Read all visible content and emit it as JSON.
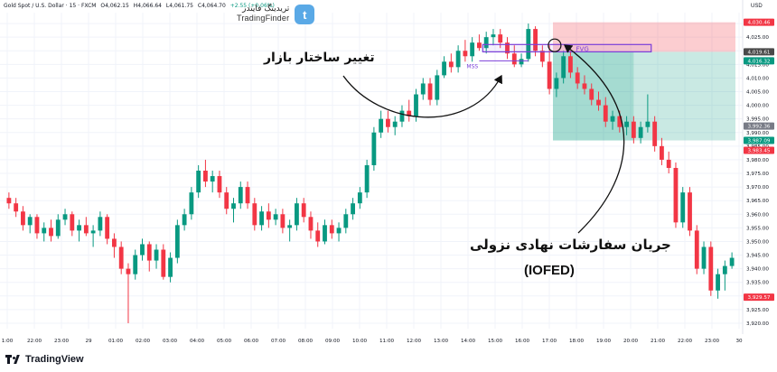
{
  "header": {
    "symbol": "Gold Spot / U.S. Dollar · 15 · FXCM",
    "open": "O4,062.15",
    "high": "H4,066.64",
    "low": "L4,061.75",
    "close": "C4,064.70",
    "change": "+2.55 (+0.06%)"
  },
  "watermark": {
    "fa": "تریدینگ فایندر",
    "en": "TradingFinder",
    "badge": "t"
  },
  "footer": {
    "brand": "TradingView"
  },
  "currency": "USD",
  "annotations": {
    "structure_change": "تغییر ساختار بازار",
    "order_flow_line1": "جریان سفارشات نهادی نزولی",
    "order_flow_line2": "(IOFED)",
    "fvg": "FVG",
    "mss": "MSS"
  },
  "price_badges": [
    {
      "value": 4030.46,
      "label": "4,030.46",
      "color": "#f23645"
    },
    {
      "value": 4019.61,
      "label": "4,019.61",
      "color": "#4a4a4a"
    },
    {
      "value": 4016.32,
      "label": "4,016.32",
      "color": "#089981"
    },
    {
      "value": 3992.36,
      "label": "3,992.36",
      "color": "#787b86"
    },
    {
      "value": 3987.09,
      "label": "3,987.09",
      "color": "#089981"
    },
    {
      "value": 3983.45,
      "label": "3,983.45",
      "color": "#f23645"
    },
    {
      "value": 3929.57,
      "label": "3,929.57",
      "color": "#f23645"
    }
  ],
  "colors": {
    "up": "#089981",
    "down": "#f23645",
    "fvg": "#7b3fd9",
    "stop_zone": "rgba(242,54,69,0.25)",
    "target_zone": "rgba(8,153,129,0.22)"
  },
  "chart_data": {
    "type": "candlestick",
    "title": "Gold Spot / U.S. Dollar · 15 · FXCM",
    "ylim": [
      3918,
      4034
    ],
    "y_ticks": [
      3920,
      3925,
      3930,
      3935,
      3940,
      3945,
      3950,
      3955,
      3960,
      3965,
      3970,
      3975,
      3980,
      3985,
      3990,
      3995,
      4000,
      4005,
      4010,
      4015,
      4020,
      4025,
      4030
    ],
    "x_ticks": [
      "1:00",
      "22:00",
      "23:00",
      "29",
      "01:00",
      "02:00",
      "03:00",
      "04:00",
      "05:00",
      "06:00",
      "07:00",
      "08:00",
      "09:00",
      "10:00",
      "11:00",
      "12:00",
      "13:00",
      "14:00",
      "15:00",
      "16:00",
      "17:00",
      "18:00",
      "19:00",
      "20:00",
      "21:00",
      "22:00",
      "23:00",
      "30"
    ],
    "candles": [
      [
        3966,
        3968,
        3962,
        3964
      ],
      [
        3964,
        3966,
        3959,
        3961
      ],
      [
        3961,
        3963,
        3954,
        3956
      ],
      [
        3956,
        3960,
        3953,
        3959
      ],
      [
        3959,
        3960,
        3951,
        3953
      ],
      [
        3953,
        3957,
        3950,
        3955
      ],
      [
        3955,
        3958,
        3950,
        3952
      ],
      [
        3952,
        3960,
        3951,
        3958
      ],
      [
        3958,
        3962,
        3956,
        3960
      ],
      [
        3960,
        3961,
        3952,
        3954
      ],
      [
        3954,
        3958,
        3950,
        3956
      ],
      [
        3956,
        3959,
        3952,
        3953
      ],
      [
        3953,
        3956,
        3948,
        3954
      ],
      [
        3954,
        3961,
        3952,
        3959
      ],
      [
        3959,
        3960,
        3949,
        3951
      ],
      [
        3951,
        3953,
        3944,
        3948
      ],
      [
        3948,
        3950,
        3938,
        3940
      ],
      [
        3940,
        3942,
        3920,
        3938
      ],
      [
        3938,
        3947,
        3936,
        3945
      ],
      [
        3945,
        3951,
        3943,
        3949
      ],
      [
        3949,
        3950,
        3939,
        3943
      ],
      [
        3943,
        3949,
        3940,
        3947
      ],
      [
        3947,
        3949,
        3936,
        3937
      ],
      [
        3937,
        3946,
        3935,
        3944
      ],
      [
        3944,
        3958,
        3942,
        3956
      ],
      [
        3956,
        3962,
        3954,
        3960
      ],
      [
        3960,
        3970,
        3958,
        3968
      ],
      [
        3968,
        3978,
        3966,
        3976
      ],
      [
        3976,
        3980,
        3970,
        3972
      ],
      [
        3972,
        3976,
        3968,
        3974
      ],
      [
        3974,
        3976,
        3966,
        3968
      ],
      [
        3968,
        3970,
        3960,
        3962
      ],
      [
        3962,
        3966,
        3957,
        3964
      ],
      [
        3964,
        3972,
        3962,
        3970
      ],
      [
        3970,
        3972,
        3962,
        3964
      ],
      [
        3964,
        3966,
        3954,
        3956
      ],
      [
        3956,
        3963,
        3954,
        3961
      ],
      [
        3961,
        3964,
        3955,
        3958
      ],
      [
        3958,
        3962,
        3956,
        3960
      ],
      [
        3960,
        3962,
        3953,
        3955
      ],
      [
        3955,
        3958,
        3950,
        3956
      ],
      [
        3956,
        3966,
        3954,
        3964
      ],
      [
        3964,
        3966,
        3957,
        3959
      ],
      [
        3959,
        3961,
        3951,
        3954
      ],
      [
        3954,
        3957,
        3948,
        3950
      ],
      [
        3950,
        3958,
        3949,
        3956
      ],
      [
        3956,
        3958,
        3951,
        3953
      ],
      [
        3953,
        3957,
        3950,
        3955
      ],
      [
        3955,
        3962,
        3953,
        3960
      ],
      [
        3960,
        3966,
        3958,
        3964
      ],
      [
        3964,
        3970,
        3962,
        3968
      ],
      [
        3968,
        3980,
        3966,
        3978
      ],
      [
        3978,
        3992,
        3976,
        3990
      ],
      [
        3990,
        3998,
        3988,
        3995
      ],
      [
        3995,
        3998,
        3990,
        3992
      ],
      [
        3992,
        3996,
        3989,
        3994
      ],
      [
        3994,
        4000,
        3992,
        3998
      ],
      [
        3998,
        4002,
        3994,
        3996
      ],
      [
        3996,
        4006,
        3994,
        4004
      ],
      [
        4004,
        4010,
        4002,
        4008
      ],
      [
        4008,
        4010,
        4000,
        4002
      ],
      [
        4002,
        4013,
        4000,
        4011
      ],
      [
        4011,
        4018,
        4010,
        4016
      ],
      [
        4016,
        4019,
        4012,
        4014
      ],
      [
        4014,
        4022,
        4012,
        4020
      ],
      [
        4020,
        4024,
        4016,
        4018
      ],
      [
        4018,
        4025,
        4016,
        4023
      ],
      [
        4023,
        4026,
        4020,
        4021
      ],
      [
        4021,
        4027,
        4019,
        4025
      ],
      [
        4025,
        4028,
        4022,
        4026
      ],
      [
        4026,
        4028,
        4021,
        4023
      ],
      [
        4023,
        4025,
        4017,
        4019
      ],
      [
        4019,
        4022,
        4014,
        4015
      ],
      [
        4015,
        4019,
        4014,
        4017
      ],
      [
        4017,
        4030,
        4016,
        4028
      ],
      [
        4028,
        4029,
        4018,
        4020
      ],
      [
        4020,
        4022,
        4014,
        4016
      ],
      [
        4016,
        4022,
        4004,
        4006
      ],
      [
        4006,
        4012,
        4003,
        4010
      ],
      [
        4010,
        4020,
        4008,
        4018
      ],
      [
        4018,
        4020,
        4010,
        4012
      ],
      [
        4012,
        4014,
        4006,
        4008
      ],
      [
        4008,
        4011,
        4004,
        4006
      ],
      [
        4006,
        4008,
        4000,
        4002
      ],
      [
        4002,
        4005,
        3998,
        4000
      ],
      [
        4000,
        4003,
        3992,
        3994
      ],
      [
        3994,
        3998,
        3991,
        3996
      ],
      [
        3996,
        3998,
        3990,
        3992
      ],
      [
        3992,
        3996,
        3989,
        3994
      ],
      [
        3994,
        3996,
        3986,
        3988
      ],
      [
        3988,
        3994,
        3986,
        3992
      ],
      [
        3992,
        4004,
        3990,
        3994
      ],
      [
        3994,
        3996,
        3983,
        3985
      ],
      [
        3985,
        3988,
        3978,
        3980
      ],
      [
        3980,
        3983,
        3975,
        3977
      ],
      [
        3977,
        3979,
        3955,
        3957
      ],
      [
        3957,
        3970,
        3955,
        3968
      ],
      [
        3968,
        3970,
        3952,
        3954
      ],
      [
        3954,
        3956,
        3938,
        3940
      ],
      [
        3940,
        3950,
        3938,
        3948
      ],
      [
        3948,
        3950,
        3930,
        3932
      ],
      [
        3932,
        3940,
        3929,
        3938
      ],
      [
        3938,
        3943,
        3932,
        3941
      ],
      [
        3941,
        3946,
        3940,
        3944
      ]
    ],
    "fvg_zone": {
      "price_low": 4019.61,
      "price_high": 4022.3,
      "from_index": 68,
      "to_index": 91,
      "label": "FVG"
    },
    "mss_level": {
      "price": 4016.32,
      "from_index": 67,
      "to_index": 74,
      "label": "MSS"
    },
    "short_position": {
      "entry_index": 78,
      "end_index": 103,
      "stop": 4030.46,
      "entry": 4019.61,
      "target": 3987.09
    }
  }
}
